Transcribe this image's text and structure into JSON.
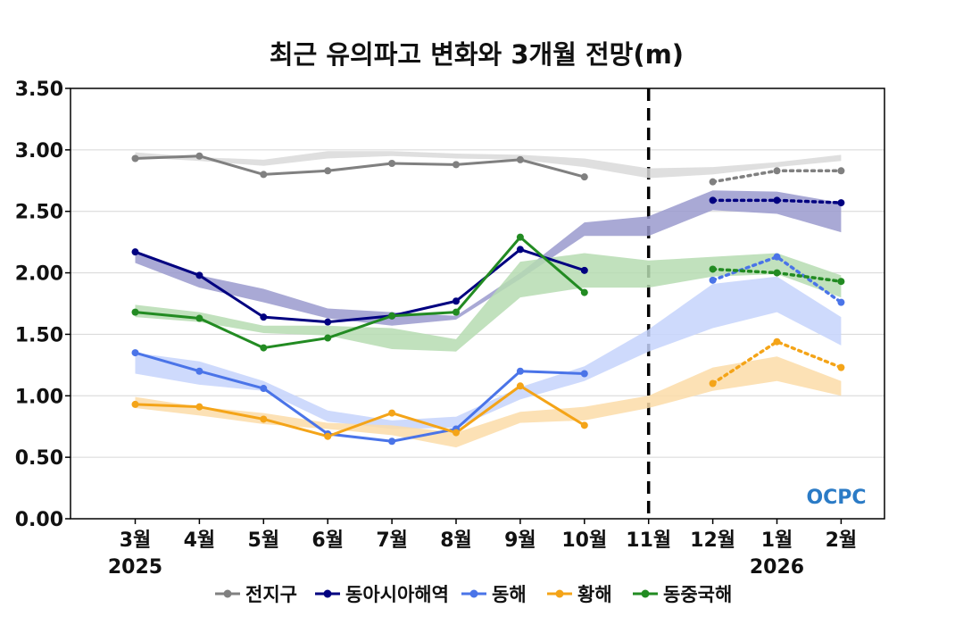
{
  "chart_data": {
    "type": "line",
    "title": "최근 유의파고 변화와 3개월 전망(m)",
    "xlabel": "",
    "ylabel": "",
    "ylim": [
      0,
      3.5
    ],
    "yticks": [
      "0.00",
      "0.50",
      "1.00",
      "1.50",
      "2.00",
      "2.50",
      "3.00",
      "3.50"
    ],
    "categories": [
      "3월",
      "4월",
      "5월",
      "6월",
      "7월",
      "8월",
      "9월",
      "10월",
      "11월",
      "12월",
      "1월",
      "2월"
    ],
    "year_labels": [
      {
        "category_index": 0,
        "label": "2025"
      },
      {
        "category_index": 10,
        "label": "2026"
      }
    ],
    "forecast_divider_index": 8,
    "grid": "horizontal",
    "legend_position": "bottom",
    "logo_text": "OCPC",
    "series": [
      {
        "name": "전지구",
        "color": "#808080",
        "band_color": "#d9d9d9",
        "observed": [
          2.93,
          2.95,
          2.8,
          2.83,
          2.89,
          2.88,
          2.92,
          2.78,
          null,
          null,
          null,
          null
        ],
        "forecast": [
          null,
          null,
          null,
          null,
          null,
          null,
          null,
          null,
          null,
          2.74,
          2.83,
          2.83
        ],
        "band_low": [
          2.94,
          2.91,
          2.87,
          2.93,
          2.95,
          2.93,
          2.92,
          2.86,
          2.77,
          2.8,
          2.86,
          2.91
        ],
        "band_high": [
          2.98,
          2.94,
          2.92,
          2.99,
          2.99,
          2.97,
          2.96,
          2.93,
          2.85,
          2.86,
          2.9,
          2.96
        ]
      },
      {
        "name": "동아시아해역",
        "color": "#000080",
        "band_color": "#9a9ace",
        "observed": [
          2.17,
          1.98,
          1.64,
          1.6,
          1.65,
          1.77,
          2.19,
          2.02,
          null,
          null,
          null,
          null
        ],
        "forecast": [
          null,
          null,
          null,
          null,
          null,
          null,
          null,
          null,
          null,
          2.59,
          2.59,
          2.57
        ],
        "band_low": [
          2.08,
          1.88,
          1.76,
          1.63,
          1.57,
          1.62,
          1.95,
          2.3,
          2.3,
          2.51,
          2.48,
          2.33
        ],
        "band_high": [
          2.17,
          1.98,
          1.87,
          1.71,
          1.68,
          1.65,
          2.0,
          2.41,
          2.46,
          2.67,
          2.66,
          2.57
        ]
      },
      {
        "name": "동해",
        "color": "#4a74e8",
        "band_color": "#c5d4fb",
        "observed": [
          1.35,
          1.2,
          1.06,
          0.69,
          0.63,
          0.73,
          1.2,
          1.18,
          null,
          null,
          null,
          null
        ],
        "forecast": [
          null,
          null,
          null,
          null,
          null,
          null,
          null,
          null,
          null,
          1.94,
          2.13,
          1.76
        ],
        "band_low": [
          1.18,
          1.09,
          1.04,
          0.79,
          0.73,
          0.74,
          0.97,
          1.12,
          1.36,
          1.55,
          1.68,
          1.41
        ],
        "band_high": [
          1.35,
          1.28,
          1.12,
          0.88,
          0.8,
          0.83,
          1.07,
          1.24,
          1.54,
          1.91,
          1.97,
          1.64
        ]
      },
      {
        "name": "황해",
        "color": "#f4a418",
        "band_color": "#fbdca8",
        "observed": [
          0.93,
          0.91,
          0.81,
          0.67,
          0.86,
          0.7,
          1.08,
          0.76,
          null,
          null,
          null,
          null
        ],
        "forecast": [
          null,
          null,
          null,
          null,
          null,
          null,
          null,
          null,
          null,
          1.1,
          1.44,
          1.23
        ],
        "band_low": [
          0.9,
          0.84,
          0.77,
          0.73,
          0.68,
          0.58,
          0.78,
          0.8,
          0.9,
          1.04,
          1.12,
          1.0
        ],
        "band_high": [
          0.99,
          0.91,
          0.86,
          0.78,
          0.76,
          0.7,
          0.87,
          0.91,
          1.0,
          1.23,
          1.32,
          1.12
        ]
      },
      {
        "name": "동중국해",
        "color": "#228b22",
        "band_color": "#b6dcb2",
        "observed": [
          1.68,
          1.63,
          1.39,
          1.47,
          1.65,
          1.68,
          2.29,
          1.84,
          null,
          null,
          null,
          null
        ],
        "forecast": [
          null,
          null,
          null,
          null,
          null,
          null,
          null,
          null,
          null,
          2.03,
          2.0,
          1.93
        ],
        "band_low": [
          1.64,
          1.6,
          1.51,
          1.49,
          1.38,
          1.36,
          1.8,
          1.88,
          1.88,
          1.97,
          1.99,
          1.8
        ],
        "band_high": [
          1.74,
          1.68,
          1.57,
          1.57,
          1.55,
          1.46,
          2.09,
          2.16,
          2.1,
          2.13,
          2.16,
          1.98
        ]
      }
    ]
  }
}
